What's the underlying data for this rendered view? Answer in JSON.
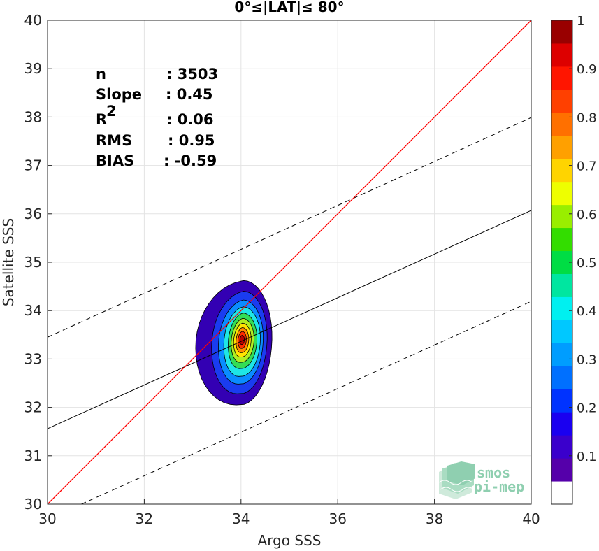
{
  "chart_data": {
    "type": "contour-scatter",
    "title": "0°≤|LAT|≤ 80°",
    "xlabel": "Argo SSS",
    "ylabel": "Satellite SSS",
    "xlim": [
      30,
      40
    ],
    "ylim": [
      30,
      40
    ],
    "xticks": [
      "30",
      "32",
      "34",
      "36",
      "38",
      "40"
    ],
    "yticks": [
      "30",
      "31",
      "32",
      "33",
      "34",
      "35",
      "36",
      "37",
      "38",
      "39",
      "40"
    ],
    "grid": true,
    "stats": [
      {
        "name": "n",
        "value": ": 3503"
      },
      {
        "name": "Slope",
        "value": ": 0.45"
      },
      {
        "name": "R",
        "sup": "2",
        "value": ": 0.06"
      },
      {
        "name": "RMS",
        "value": ": 0.95"
      },
      {
        "name": "BIAS",
        "value": ": -0.59"
      }
    ],
    "lines": {
      "identity": {
        "x": [
          30,
          40
        ],
        "y": [
          30,
          40
        ],
        "color": "#ff0000"
      },
      "fit": {
        "x": [
          30,
          40
        ],
        "y": [
          31.56,
          36.07
        ],
        "color": "#000000"
      },
      "fit_upper": {
        "x": [
          30,
          40
        ],
        "y": [
          33.45,
          37.99
        ],
        "color": "#000000",
        "style": "dashed"
      },
      "fit_lower": {
        "x": [
          30.7,
          40
        ],
        "y": [
          30.0,
          34.19
        ],
        "color": "#000000",
        "style": "dashed"
      }
    },
    "density_center": {
      "x": 34.02,
      "y": 33.4
    },
    "contour_levels": [
      {
        "level": 0.05,
        "color": "#3300b3",
        "dx": [
          -0.95,
          0.62
        ],
        "dy": [
          -1.35,
          1.22
        ]
      },
      {
        "level": 0.15,
        "color": "#1a3cf0",
        "dx": [
          -0.62,
          0.52
        ],
        "dy": [
          -1.12,
          1.0
        ]
      },
      {
        "level": 0.25,
        "color": "#0a8cff",
        "dx": [
          -0.48,
          0.44
        ],
        "dy": [
          -0.92,
          0.82
        ]
      },
      {
        "level": 0.35,
        "color": "#1ee6e6",
        "dx": [
          -0.37,
          0.38
        ],
        "dy": [
          -0.76,
          0.68
        ]
      },
      {
        "level": 0.45,
        "color": "#33dd55",
        "dx": [
          -0.28,
          0.31
        ],
        "dy": [
          -0.6,
          0.55
        ]
      },
      {
        "level": 0.55,
        "color": "#b0ee22",
        "dx": [
          -0.22,
          0.25
        ],
        "dy": [
          -0.47,
          0.44
        ]
      },
      {
        "level": 0.65,
        "color": "#ffe400",
        "dx": [
          -0.17,
          0.19
        ],
        "dy": [
          -0.36,
          0.34
        ]
      },
      {
        "level": 0.75,
        "color": "#ff8a00",
        "dx": [
          -0.12,
          0.14
        ],
        "dy": [
          -0.27,
          0.25
        ]
      },
      {
        "level": 0.85,
        "color": "#ff2a00",
        "dx": [
          -0.08,
          0.09
        ],
        "dy": [
          -0.18,
          0.17
        ]
      },
      {
        "level": 0.95,
        "color": "#b80000",
        "dx": [
          -0.045,
          0.05
        ],
        "dy": [
          -0.1,
          0.09
        ]
      }
    ],
    "colorbar": {
      "range": [
        0,
        1
      ],
      "ticks": [
        "0.1",
        "0.2",
        "0.3",
        "0.4",
        "0.5",
        "0.6",
        "0.7",
        "0.8",
        "0.9",
        "1"
      ],
      "colors": [
        "#ffffff",
        "#5500aa",
        "#3a00cc",
        "#1a00f0",
        "#0033ff",
        "#0070ff",
        "#009dff",
        "#00c8ff",
        "#00f0f0",
        "#00e6a0",
        "#00dd44",
        "#33dd00",
        "#99ee00",
        "#eeff00",
        "#ffd400",
        "#ffa000",
        "#ff7000",
        "#ff4000",
        "#ff1500",
        "#dd0000",
        "#990000"
      ]
    }
  },
  "logo": {
    "line1": "smos",
    "line2": "pi-mep"
  }
}
